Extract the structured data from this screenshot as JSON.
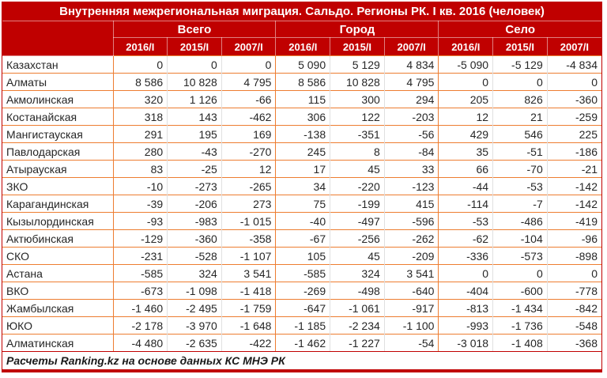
{
  "chart_data": {
    "type": "table",
    "title": "Внутренняя межрегиональная миграция. Сальдо. Регионы РК. I кв. 2016 (человек)",
    "column_groups": [
      {
        "label": "Всего"
      },
      {
        "label": "Город"
      },
      {
        "label": "Село"
      }
    ],
    "period_columns": [
      "2016/I",
      "2015/I",
      "2007/I"
    ],
    "unit": "человек",
    "rows": [
      {
        "region": "Казахстан",
        "values": [
          0,
          0,
          0,
          5090,
          5129,
          4834,
          -5090,
          -5129,
          -4834
        ]
      },
      {
        "region": "Алматы",
        "values": [
          8586,
          10828,
          4795,
          8586,
          10828,
          4795,
          0,
          0,
          0
        ]
      },
      {
        "region": "Акмолинская",
        "values": [
          320,
          1126,
          -66,
          115,
          300,
          294,
          205,
          826,
          -360
        ]
      },
      {
        "region": "Костанайская",
        "values": [
          318,
          143,
          -462,
          306,
          122,
          -203,
          12,
          21,
          -259
        ]
      },
      {
        "region": "Мангистауская",
        "values": [
          291,
          195,
          169,
          -138,
          -351,
          -56,
          429,
          546,
          225
        ]
      },
      {
        "region": "Павлодарская",
        "values": [
          280,
          -43,
          -270,
          245,
          8,
          -84,
          35,
          -51,
          -186
        ]
      },
      {
        "region": "Атырауская",
        "values": [
          83,
          -25,
          12,
          17,
          45,
          33,
          66,
          -70,
          -21
        ]
      },
      {
        "region": "ЗКО",
        "values": [
          -10,
          -273,
          -265,
          34,
          -220,
          -123,
          -44,
          -53,
          -142
        ]
      },
      {
        "region": "Карагандинская",
        "values": [
          -39,
          -206,
          273,
          75,
          -199,
          415,
          -114,
          -7,
          -142
        ]
      },
      {
        "region": "Кызылординская",
        "values": [
          -93,
          -983,
          -1015,
          -40,
          -497,
          -596,
          -53,
          -486,
          -419
        ]
      },
      {
        "region": "Актюбинская",
        "values": [
          -129,
          -360,
          -358,
          -67,
          -256,
          -262,
          -62,
          -104,
          -96
        ]
      },
      {
        "region": "СКО",
        "values": [
          -231,
          -528,
          -1107,
          105,
          45,
          -209,
          -336,
          -573,
          -898
        ]
      },
      {
        "region": "Астана",
        "values": [
          -585,
          324,
          3541,
          -585,
          324,
          3541,
          0,
          0,
          0
        ]
      },
      {
        "region": "ВКО",
        "values": [
          -673,
          -1098,
          -1418,
          -269,
          -498,
          -640,
          -404,
          -600,
          -778
        ]
      },
      {
        "region": "Жамбылская",
        "values": [
          -1460,
          -2495,
          -1759,
          -647,
          -1061,
          -917,
          -813,
          -1434,
          -842
        ]
      },
      {
        "region": "ЮКО",
        "values": [
          -2178,
          -3970,
          -1648,
          -1185,
          -2234,
          -1100,
          -993,
          -1736,
          -548
        ]
      },
      {
        "region": "Алматинская",
        "values": [
          -4480,
          -2635,
          -422,
          -1462,
          -1227,
          -54,
          -3018,
          -1408,
          -368
        ]
      }
    ],
    "source": "Расчеты Ranking.kz на основе данных КС МНЭ РК",
    "colors": {
      "header_background": "#c00000",
      "header_text": "#ffffff",
      "grid_orange": "#ed7d31",
      "body_text": "#262626"
    },
    "layout": {
      "grid": true,
      "legend": "none"
    }
  }
}
